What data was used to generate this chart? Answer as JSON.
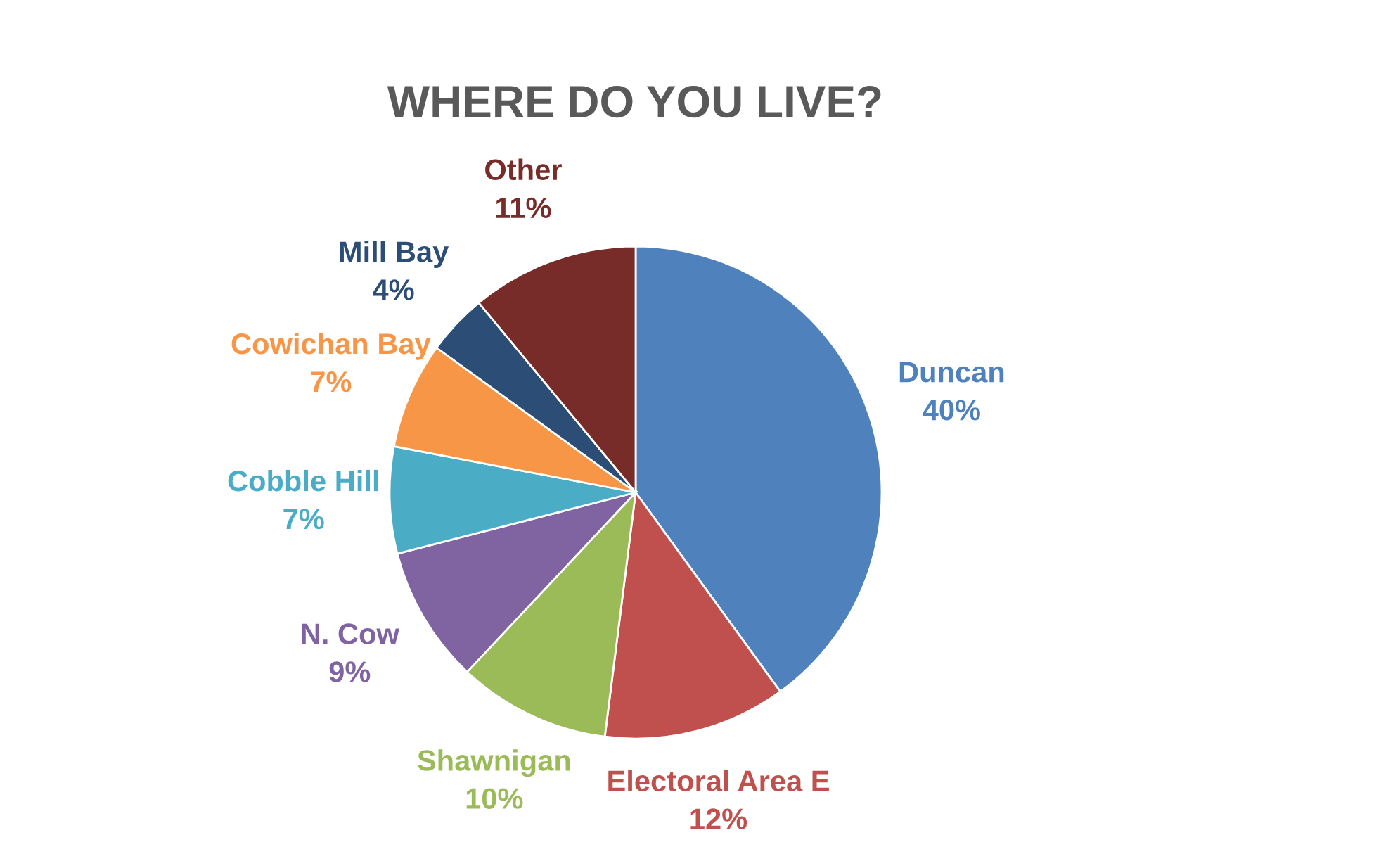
{
  "chart_data": {
    "type": "pie",
    "title": "WHERE DO YOU LIVE?",
    "categories": [
      "Duncan",
      "Electoral Area E",
      "Shawnigan",
      "N. Cow",
      "Cobble Hill",
      "Cowichan Bay",
      "Mill Bay",
      "Other"
    ],
    "values": [
      40,
      12,
      10,
      9,
      7,
      7,
      4,
      11
    ],
    "colors": [
      "#4f81bd",
      "#c0504d",
      "#9bbb59",
      "#8064a2",
      "#4bacc6",
      "#f79646",
      "#2c4d75",
      "#772c2a"
    ],
    "value_labels": [
      "40%",
      "12%",
      "10%",
      "9%",
      "7%",
      "7%",
      "4%",
      "11%"
    ],
    "legend": false
  }
}
